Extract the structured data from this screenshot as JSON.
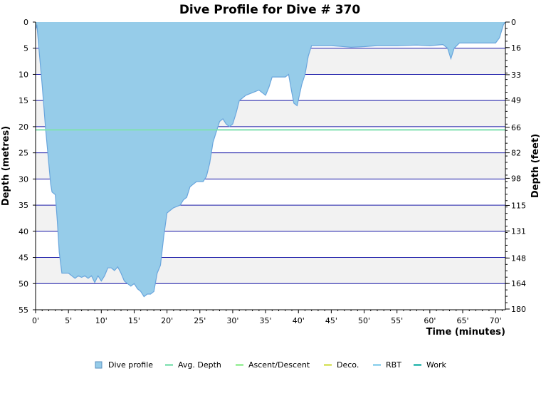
{
  "chart_data": {
    "type": "area",
    "title": "Dive Profile for Dive # 370",
    "xlabel": "Time (minutes)",
    "ylabel": "Depth (metres)",
    "ylabel_right": "Depth (feet)",
    "xlim": [
      0,
      71.5
    ],
    "ylim": [
      0,
      55
    ],
    "y_inverted": true,
    "x_ticks": [
      0,
      5,
      10,
      15,
      20,
      25,
      30,
      35,
      40,
      45,
      50,
      55,
      60,
      65,
      70
    ],
    "x_tick_labels": [
      "0'",
      "5'",
      "10'",
      "15'",
      "20'",
      "25'",
      "30'",
      "35'",
      "40'",
      "45'",
      "50'",
      "55'",
      "60'",
      "65'",
      "70'"
    ],
    "y_ticks": [
      0,
      5,
      10,
      15,
      20,
      25,
      30,
      35,
      40,
      45,
      50,
      55
    ],
    "y_tick_labels": [
      "0",
      "5",
      "10",
      "15",
      "20",
      "25",
      "30",
      "35",
      "40",
      "45",
      "50",
      "55"
    ],
    "y_right_ticks": [
      0,
      16,
      33,
      49,
      66,
      82,
      98,
      115,
      131,
      148,
      164,
      180
    ],
    "y_right_tick_labels": [
      "0",
      "16",
      "33",
      "49",
      "66",
      "82",
      "98",
      "115",
      "131",
      "148",
      "164",
      "180"
    ],
    "avg_depth": 20.6,
    "colors": {
      "profile_fill": "#96cce9",
      "profile_line": "#6aa6dd",
      "avg_depth": "#7fe0b0",
      "ascent_descent": "#90ee90",
      "deco": "#d4e157",
      "rbt": "#87ceeb",
      "work": "#20b2aa",
      "gridline": "#1a1aa8",
      "band": "#f2f2f2"
    },
    "series": [
      {
        "name": "Dive profile",
        "x": [
          0,
          0.2,
          0.5,
          1,
          1.5,
          2,
          2.3,
          2.5,
          3,
          3.3,
          3.6,
          4,
          4.5,
          5,
          5.5,
          6,
          6.5,
          7,
          7.5,
          8,
          8.5,
          9,
          9.5,
          10,
          10.5,
          11,
          11.5,
          12,
          12.5,
          13,
          13.5,
          14,
          14.5,
          15,
          15.5,
          16,
          16.5,
          17,
          17.5,
          18,
          18.5,
          19,
          19.5,
          20,
          20.5,
          21,
          22,
          22.5,
          23,
          23.5,
          24,
          24.5,
          25,
          25.5,
          26,
          26.5,
          27,
          27.5,
          28,
          28.5,
          29,
          29.5,
          30,
          30.5,
          31,
          31.5,
          32,
          33,
          34,
          35,
          35.5,
          36,
          37,
          38,
          38.5,
          39,
          39.3,
          39.8,
          40.5,
          41,
          41.5,
          42,
          45,
          48,
          50,
          52,
          55,
          58,
          60,
          62,
          62.7,
          63.2,
          63.7,
          64.5,
          66,
          68,
          70,
          70.6,
          71.2,
          71.5
        ],
        "y": [
          1.5,
          0.5,
          5,
          12,
          20,
          27,
          31,
          32.5,
          33,
          38,
          44,
          48,
          48,
          48,
          48.5,
          49,
          48.5,
          48.8,
          48.5,
          49,
          48.5,
          49.8,
          48.5,
          49.5,
          48.5,
          47,
          47,
          47.5,
          46.8,
          48,
          49.5,
          50,
          50.5,
          50,
          51,
          51.5,
          52.5,
          52,
          52,
          51.5,
          48,
          46.5,
          41,
          36.5,
          36,
          35.5,
          35,
          34,
          33.5,
          31.5,
          31,
          30.5,
          30.5,
          30.5,
          29.5,
          27,
          23,
          21,
          19,
          18.5,
          19.5,
          20,
          19.5,
          17.5,
          15,
          14.5,
          14,
          13.5,
          13,
          14,
          12.5,
          10.5,
          10.5,
          10.5,
          10,
          13.5,
          15.5,
          16,
          12,
          10,
          6.5,
          4.5,
          4.5,
          4.8,
          4.7,
          4.5,
          4.5,
          4.4,
          4.5,
          4.3,
          5,
          7,
          5,
          4,
          4,
          4,
          4,
          3,
          0.5,
          0
        ]
      },
      {
        "name": "Avg. Depth"
      },
      {
        "name": "Ascent/Descent"
      },
      {
        "name": "Deco."
      },
      {
        "name": "RBT"
      },
      {
        "name": "Work"
      }
    ],
    "legend_position": "bottom"
  }
}
